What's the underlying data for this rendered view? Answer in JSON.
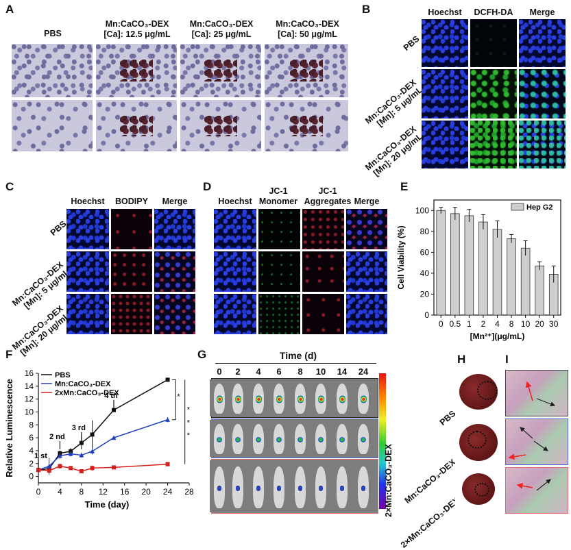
{
  "panels": {
    "A": {
      "label": "A",
      "headers": [
        "PBS",
        "Mn:CaCO₃-DEX\n[Ca]: 12.5 μg/mL",
        "Mn:CaCO₃-DEX\n[Ca]: 25 μg/mL",
        "Mn:CaCO₃-DEX\n[Ca]: 50 μg/mL"
      ]
    },
    "B": {
      "label": "B",
      "cols": [
        "Hoechst",
        "DCFH-DA",
        "Merge"
      ],
      "rows": [
        "PBS",
        "Mn:CaCO₃-DEX\n[Mn]: 5 μg/mL",
        "Mn:CaCO₃-DEX\n[Mn]: 20 μg/mL"
      ]
    },
    "C": {
      "label": "C",
      "cols": [
        "Hoechst",
        "BODIPY",
        "Merge"
      ],
      "rows": [
        "PBS",
        "Mn:CaCO₃-DEX\n[Mn]: 5 μg/mL",
        "Mn:CaCO₃-DEX\n[Mn]: 20 μg/mL"
      ]
    },
    "D": {
      "label": "D",
      "cols": [
        "Hoechst",
        "JC-1\nMonomer",
        "JC-1\nAggregates",
        "Merge"
      ]
    },
    "E": {
      "label": "E"
    },
    "F": {
      "label": "F"
    },
    "G": {
      "label": "G",
      "time_title": "Time (d)",
      "times": [
        "0",
        "2",
        "4",
        "6",
        "8",
        "10",
        "14",
        "24"
      ],
      "side_label": "2×Mn:CaCO₃-DEX"
    },
    "H": {
      "label": "H"
    },
    "I": {
      "label": "I",
      "rows": [
        "PBS",
        "Mn:CaCO₃-DEX",
        "2×Mn:CaCO₃-DEX"
      ]
    }
  },
  "colors": {
    "bar": "#cfcfcf",
    "pbs": "#111111",
    "mn": "#1f3fbf",
    "mn2x": "#d41f1f"
  },
  "chart_data": [
    {
      "type": "bar",
      "title": "",
      "xlabel": "[Mn²⁺](μg/mL)",
      "ylabel": "Cell Viability (%)",
      "categories": [
        "0",
        "0.5",
        "1",
        "2",
        "4",
        "8",
        "10",
        "20",
        "30"
      ],
      "series": [
        {
          "name": "Hep G2",
          "values": [
            100,
            97,
            95,
            89,
            82,
            73,
            64,
            47,
            39
          ],
          "errors": [
            3,
            6,
            6,
            7,
            8,
            4,
            7,
            4,
            8
          ]
        }
      ],
      "ylim": [
        0,
        110
      ],
      "yticks": [
        "0",
        "20",
        "40",
        "60",
        "80",
        "100"
      ],
      "legend": "top-right"
    },
    {
      "type": "line",
      "title": "",
      "xlabel": "Time (day)",
      "ylabel": "Relative Luminescence",
      "xlim": [
        0,
        28
      ],
      "ylim": [
        -1,
        16
      ],
      "xticks": [
        "0",
        "4",
        "8",
        "12",
        "16",
        "20",
        "24",
        "28"
      ],
      "yticks": [
        "0",
        "2",
        "4",
        "6",
        "8",
        "10",
        "12",
        "14",
        "16"
      ],
      "series": [
        {
          "name": "PBS",
          "x": [
            0,
            2,
            4,
            6,
            8,
            10,
            14,
            24
          ],
          "y": [
            1,
            1.2,
            3.6,
            3.9,
            5.2,
            6.5,
            10.3,
            15
          ],
          "errors": [
            0.1,
            0.3,
            0.4,
            0.5,
            1.0,
            2.2,
            0.2,
            0.1
          ]
        },
        {
          "name": "Mn:CaCO₃-DEX",
          "x": [
            0,
            2,
            4,
            6,
            8,
            10,
            14,
            24
          ],
          "y": [
            1,
            1.6,
            3.2,
            3.5,
            3.3,
            3.9,
            6.0,
            8.8
          ],
          "errors": [
            0.1,
            1.3,
            0.5,
            0.4,
            0.4,
            0.5,
            0.2,
            0.4
          ]
        },
        {
          "name": "2xMn:CaCO₃-DEX",
          "x": [
            0,
            2,
            4,
            6,
            8,
            10,
            14,
            24
          ],
          "y": [
            1,
            0.9,
            1.6,
            1.3,
            0.8,
            1.3,
            1.4,
            1.9
          ],
          "errors": [
            0.1,
            0.4,
            0.4,
            0.3,
            0.2,
            0.4,
            0.3,
            0.3
          ]
        }
      ],
      "annotations": [
        "1 st",
        "2 nd",
        "3 rd",
        "4 th"
      ],
      "significance": [
        "*",
        "*",
        "*",
        "*"
      ],
      "legend": "top-left"
    }
  ]
}
